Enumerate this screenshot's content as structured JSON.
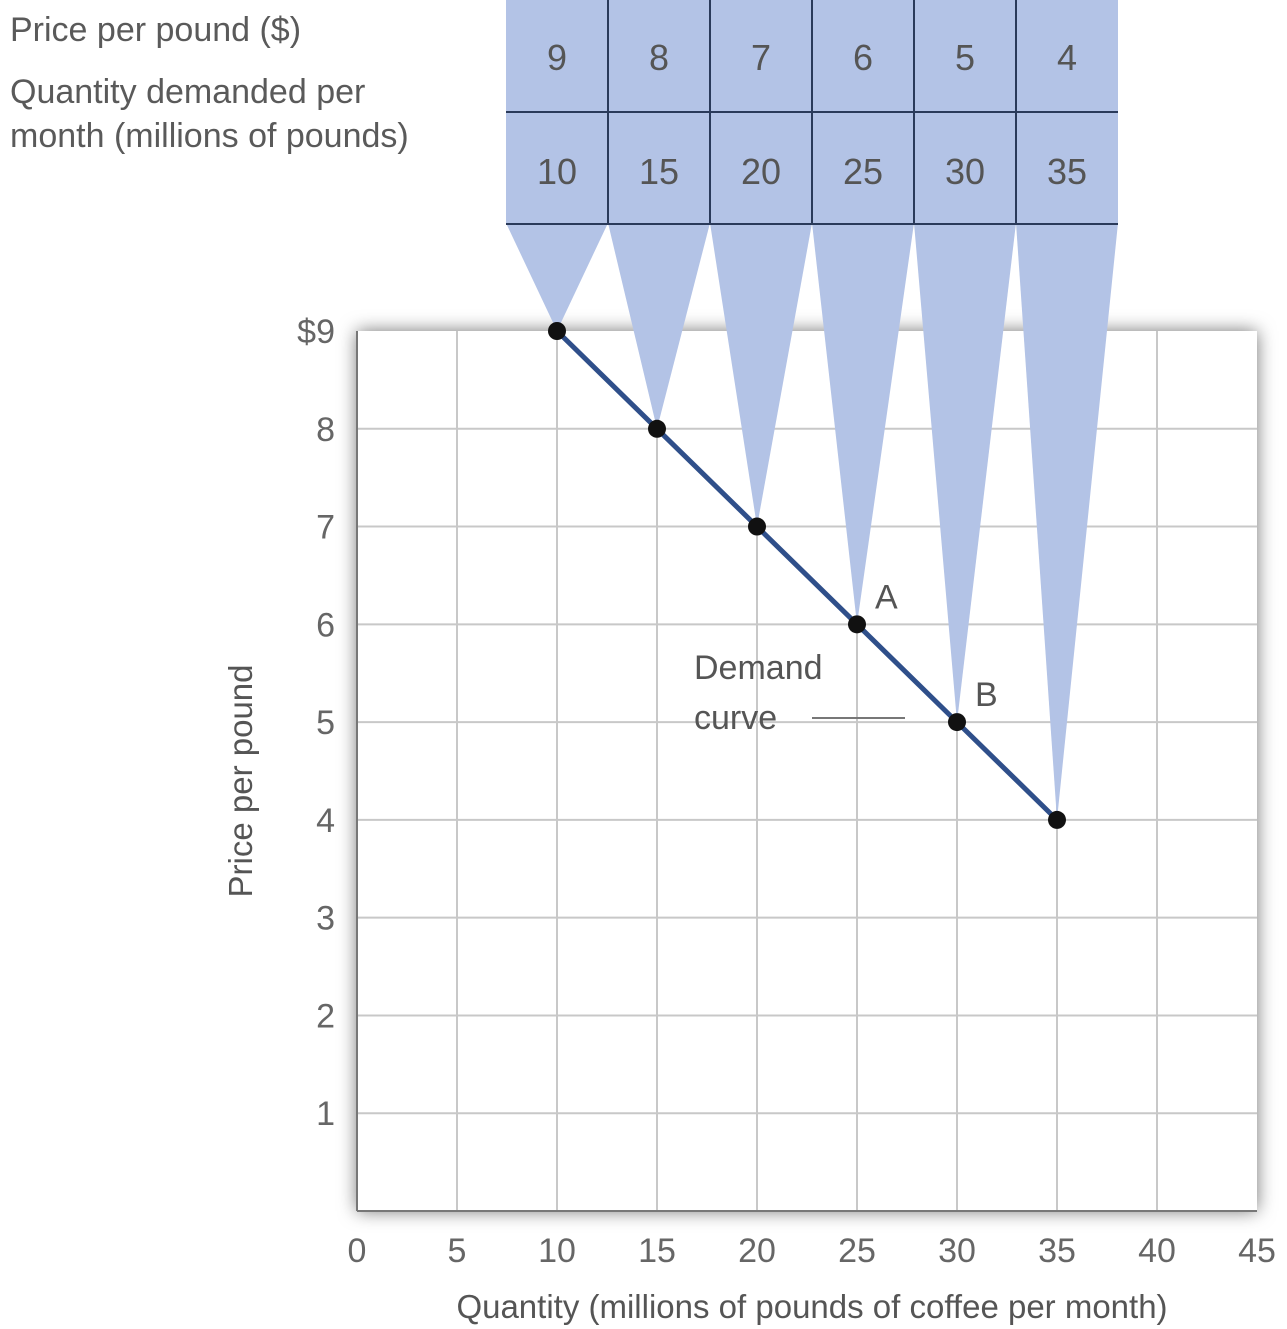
{
  "colors": {
    "funnel": "#b3c3e6",
    "grid": "#c8c8c8",
    "line": "#2f4f8a",
    "point": "#111111",
    "table_border": "#2a3a5a"
  },
  "chart_data": {
    "type": "line",
    "title": "",
    "xlabel": "Quantity (millions of pounds of coffee per month)",
    "ylabel": "Price per pound",
    "xlim": [
      0,
      45
    ],
    "ylim": [
      0,
      9
    ],
    "x_ticks": [
      "0",
      "5",
      "10",
      "15",
      "20",
      "25",
      "30",
      "35",
      "40",
      "45"
    ],
    "y_ticks": [
      "1",
      "2",
      "3",
      "4",
      "5",
      "6",
      "7",
      "8",
      "$9"
    ],
    "grid": true,
    "series": [
      {
        "name": "Demand curve",
        "points": [
          {
            "x": 10,
            "y": 9
          },
          {
            "x": 15,
            "y": 8
          },
          {
            "x": 20,
            "y": 7
          },
          {
            "x": 25,
            "y": 6
          },
          {
            "x": 30,
            "y": 5
          },
          {
            "x": 35,
            "y": 4
          }
        ]
      }
    ],
    "annotations": [
      {
        "text": "A",
        "x": 25,
        "y": 6
      },
      {
        "text": "B",
        "x": 30,
        "y": 5
      }
    ],
    "curve_label": [
      "Demand",
      "curve"
    ],
    "table": {
      "row_labels": [
        "Price per pound ($)",
        "Quantity demanded per month (millions of pounds)"
      ],
      "row_label_lines": {
        "price": "Price per pound ($)",
        "qty_line1": "Quantity demanded per",
        "qty_line2": "month (millions of pounds)"
      },
      "prices": [
        "9",
        "8",
        "7",
        "6",
        "5",
        "4"
      ],
      "quantities": [
        "10",
        "15",
        "20",
        "25",
        "30",
        "35"
      ]
    }
  }
}
